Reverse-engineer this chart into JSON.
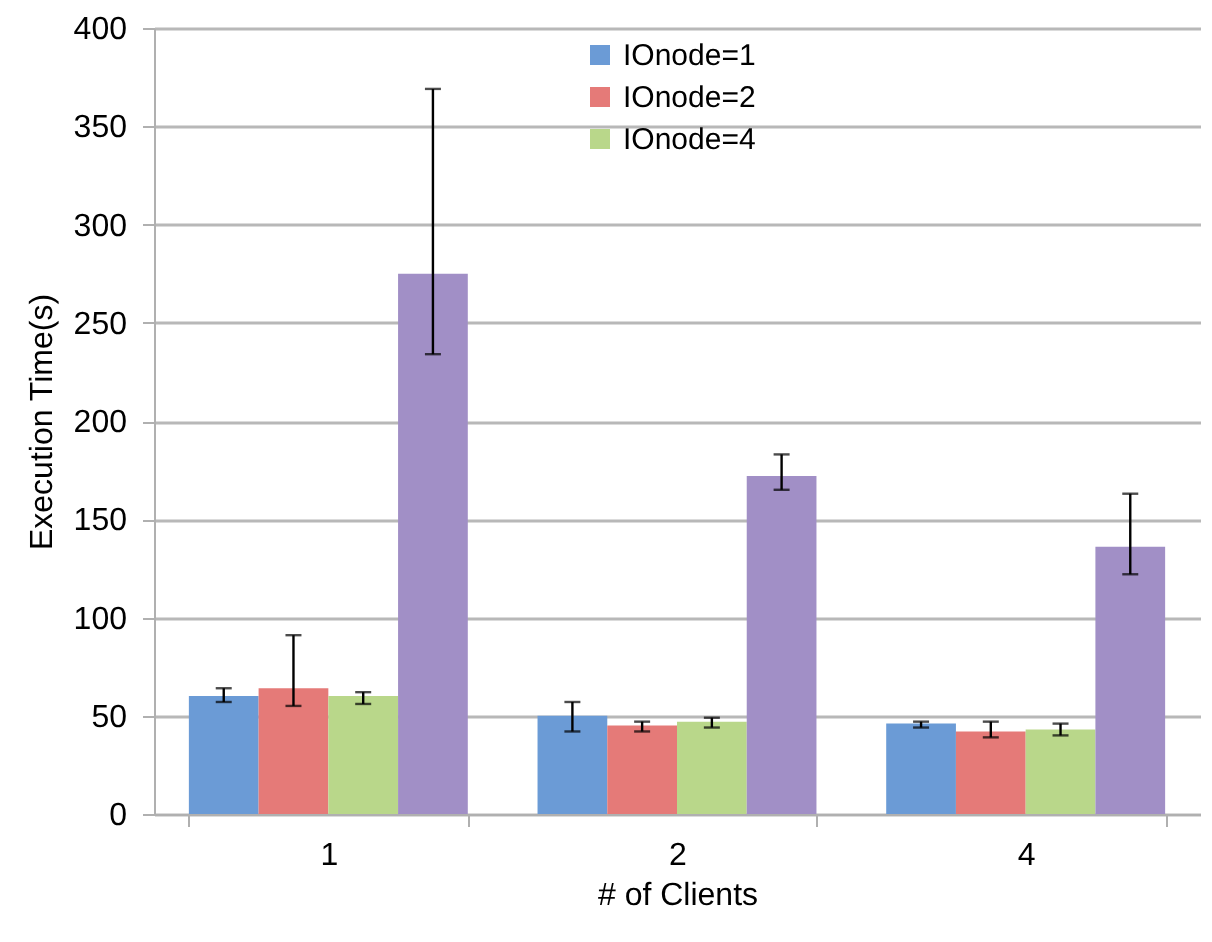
{
  "chart_data": {
    "type": "bar",
    "xlabel": "# of Clients",
    "ylabel": "Execution Time(s)",
    "categories": [
      "1",
      "2",
      "4"
    ],
    "series": [
      {
        "name": "IOnode=1",
        "color": "#6b9bd6",
        "values": [
          60,
          50,
          46
        ],
        "errors": [
          [
            57,
            64
          ],
          [
            42,
            57
          ],
          [
            44,
            47
          ]
        ]
      },
      {
        "name": "IOnode=2",
        "color": "#e57a78",
        "values": [
          64,
          45,
          42
        ],
        "errors": [
          [
            55,
            91
          ],
          [
            42,
            47
          ],
          [
            39,
            47
          ]
        ]
      },
      {
        "name": "IOnode=4",
        "color": "#b9d78a",
        "values": [
          60,
          47,
          43
        ],
        "errors": [
          [
            56,
            62
          ],
          [
            44,
            49
          ],
          [
            40,
            46
          ]
        ]
      },
      {
        "color": "#a18fc6",
        "values": [
          275,
          172,
          136
        ],
        "errors": [
          [
            234,
            369
          ],
          [
            165,
            183
          ],
          [
            122,
            163
          ]
        ]
      }
    ],
    "ylim": [
      0,
      400
    ],
    "yticks": [
      0,
      50,
      100,
      150,
      200,
      250,
      300,
      350,
      400
    ],
    "grid": "y",
    "legend": "top"
  }
}
